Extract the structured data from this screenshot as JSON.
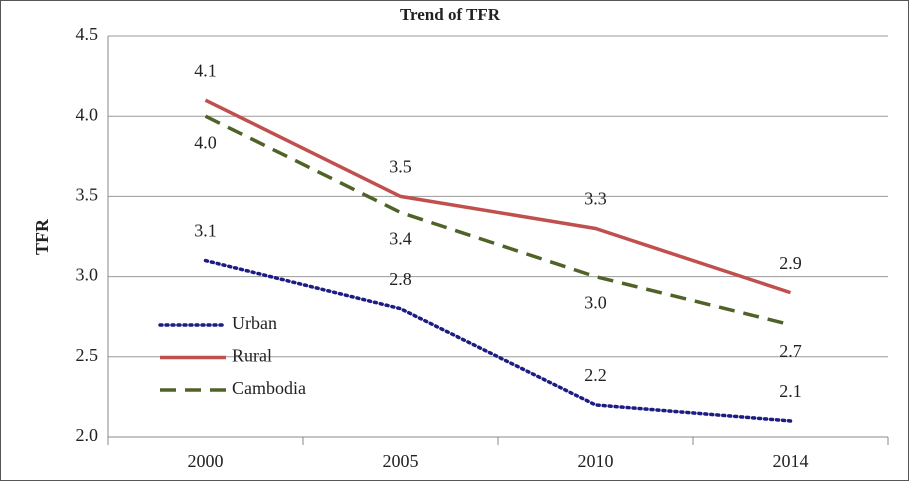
{
  "chart_data": {
    "type": "line",
    "title": "Trend of TFR",
    "y_label": "TFR",
    "categories": [
      "2000",
      "2005",
      "2010",
      "2014"
    ],
    "series": [
      {
        "name": "Urban",
        "color": "#1c1c84",
        "style": "dotted",
        "values": [
          3.1,
          2.8,
          2.2,
          2.1
        ],
        "value_labels": [
          "3.1",
          "2.8",
          "2.2",
          "2.1"
        ]
      },
      {
        "name": "Rural",
        "color": "#c0504d",
        "style": "solid",
        "values": [
          4.1,
          3.5,
          3.3,
          2.9
        ],
        "value_labels": [
          "4.1",
          "3.5",
          "3.3",
          "2.9"
        ]
      },
      {
        "name": "Cambodia",
        "color": "#4f6228",
        "style": "dashed",
        "values": [
          4.0,
          3.4,
          3.0,
          2.7
        ],
        "value_labels": [
          "4.0",
          "3.4",
          "3.0",
          "2.7"
        ]
      }
    ],
    "ylim": [
      2.0,
      4.5
    ],
    "yticks": [
      {
        "value": 2,
        "label": "2.0"
      },
      2.5,
      {
        "value": 3,
        "label": "3.0"
      },
      3.5,
      {
        "value": 4,
        "label": "4.0"
      },
      4.5
    ],
    "grid": true,
    "legend": "lower left"
  }
}
